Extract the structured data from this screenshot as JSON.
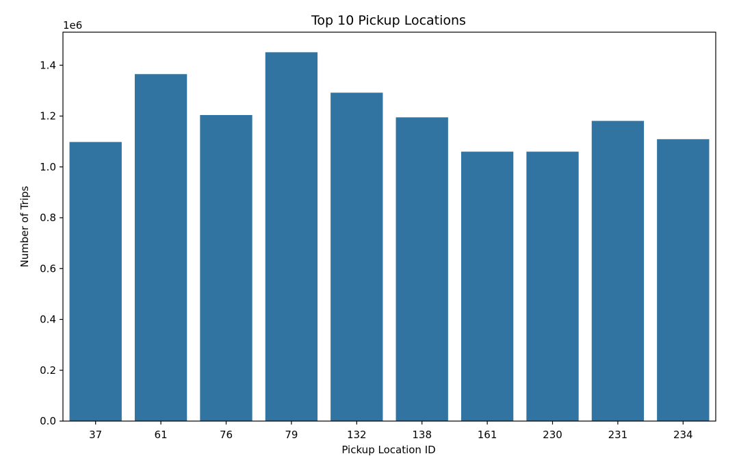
{
  "chart_data": {
    "type": "bar",
    "title": "Top 10 Pickup Locations",
    "xlabel": "Pickup Location ID",
    "ylabel": "Number of Trips",
    "y_offset_label": "1e6",
    "categories": [
      "37",
      "61",
      "76",
      "79",
      "132",
      "138",
      "161",
      "230",
      "231",
      "234"
    ],
    "values": [
      1098000,
      1365000,
      1204000,
      1451000,
      1292000,
      1195000,
      1060000,
      1060000,
      1181000,
      1109000
    ],
    "ylim": [
      0,
      1530000
    ],
    "yticks": [
      0,
      200000,
      400000,
      600000,
      800000,
      1000000,
      1200000,
      1400000
    ],
    "ytick_labels": [
      "0.0",
      "0.2",
      "0.4",
      "0.6",
      "0.8",
      "1.0",
      "1.2",
      "1.4"
    ],
    "bar_color": "#3274a1",
    "grid": false,
    "legend": "none"
  }
}
